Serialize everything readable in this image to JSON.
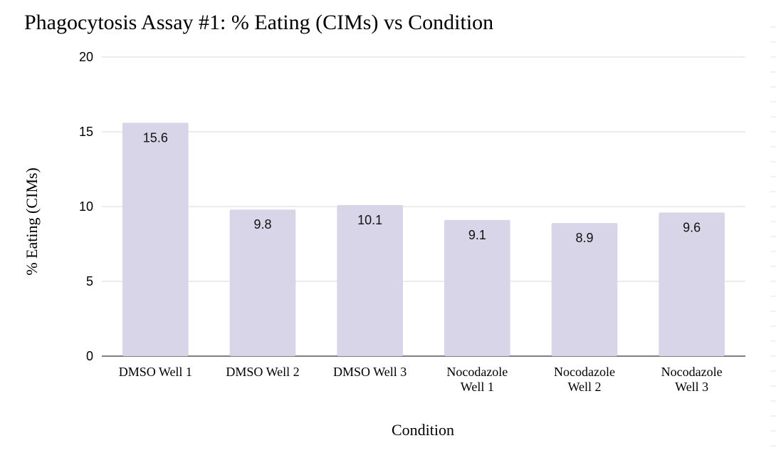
{
  "chart_data": {
    "type": "bar",
    "title": "Phagocytosis Assay #1: % Eating (CIMs) vs Condition",
    "xlabel": "Condition",
    "ylabel": "% Eating (CIMs)",
    "categories": [
      [
        "DMSO Well 1"
      ],
      [
        "DMSO Well 2"
      ],
      [
        "DMSO Well 3"
      ],
      [
        "Nocodazole",
        "Well 1"
      ],
      [
        "Nocodazole",
        "Well 2"
      ],
      [
        "Nocodazole",
        "Well 3"
      ]
    ],
    "values": [
      15.6,
      9.8,
      10.1,
      9.1,
      8.9,
      9.6
    ],
    "data_labels": [
      "15.6",
      "9.8",
      "10.1",
      "9.1",
      "8.9",
      "9.6"
    ],
    "ylim": [
      0,
      20
    ],
    "yticks": [
      0,
      5,
      10,
      15,
      20
    ],
    "grid": true,
    "legend": "none",
    "colors": {
      "bar": "#d9d5e9",
      "grid": "#d9d9d9",
      "axis": "#555555"
    }
  }
}
